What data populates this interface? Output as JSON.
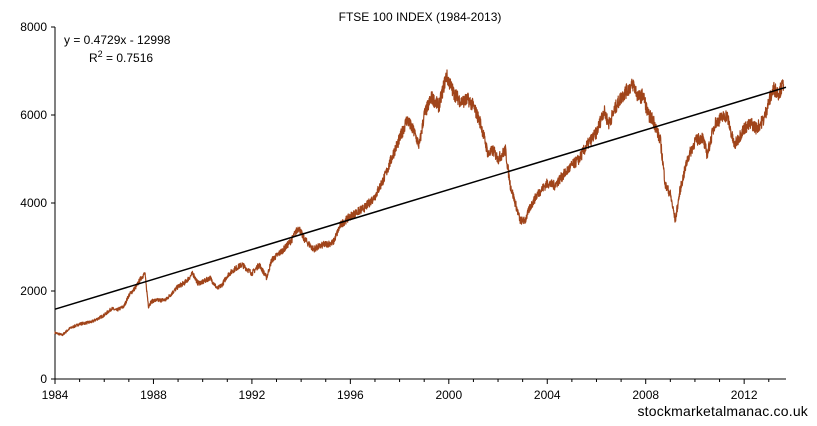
{
  "chart_data": {
    "type": "line",
    "title": "FTSE 100 INDEX (1984-2013)",
    "xlabel": "",
    "ylabel": "",
    "xlim": [
      1984,
      2013.7
    ],
    "ylim": [
      0,
      8000
    ],
    "x_ticks": [
      1984,
      1988,
      1992,
      1996,
      2000,
      2004,
      2008,
      2012
    ],
    "y_ticks": [
      0,
      2000,
      4000,
      6000,
      8000
    ],
    "grid": false,
    "legend": "none",
    "series": [
      {
        "color": "#a0441a",
        "x": [
          1984.0,
          1984.3,
          1984.6,
          1985.0,
          1985.5,
          1986.0,
          1986.3,
          1986.5,
          1986.8,
          1987.0,
          1987.3,
          1987.5,
          1987.65,
          1987.8,
          1987.9,
          1988.0,
          1988.5,
          1989.0,
          1989.3,
          1989.6,
          1989.8,
          1990.0,
          1990.3,
          1990.6,
          1990.8,
          1991.0,
          1991.3,
          1991.6,
          1992.0,
          1992.3,
          1992.6,
          1992.8,
          1993.0,
          1993.3,
          1993.6,
          1993.9,
          1994.1,
          1994.5,
          1994.9,
          1995.3,
          1995.6,
          1996.0,
          1996.3,
          1996.6,
          1997.0,
          1997.4,
          1997.8,
          1998.0,
          1998.3,
          1998.6,
          1998.8,
          1999.0,
          1999.3,
          1999.6,
          1999.9,
          2000.2,
          2000.5,
          2000.8,
          2001.0,
          2001.3,
          2001.6,
          2001.8,
          2002.0,
          2002.3,
          2002.5,
          2002.7,
          2002.9,
          2003.1,
          2003.3,
          2003.6,
          2004.0,
          2004.3,
          2004.6,
          2005.0,
          2005.3,
          2005.6,
          2006.0,
          2006.3,
          2006.5,
          2006.8,
          2007.0,
          2007.3,
          2007.5,
          2007.7,
          2007.9,
          2008.1,
          2008.3,
          2008.6,
          2008.8,
          2009.0,
          2009.2,
          2009.4,
          2009.7,
          2010.0,
          2010.3,
          2010.5,
          2010.8,
          2011.0,
          2011.3,
          2011.6,
          2011.8,
          2012.0,
          2012.3,
          2012.5,
          2012.8,
          2013.0,
          2013.2,
          2013.4,
          2013.6
        ],
        "y": [
          1050,
          1000,
          1150,
          1250,
          1300,
          1450,
          1600,
          1560,
          1650,
          1900,
          2100,
          2300,
          2400,
          1650,
          1750,
          1780,
          1800,
          2100,
          2200,
          2400,
          2180,
          2200,
          2300,
          2050,
          2150,
          2350,
          2500,
          2600,
          2400,
          2600,
          2300,
          2700,
          2800,
          2950,
          3150,
          3450,
          3200,
          2950,
          3050,
          3100,
          3500,
          3700,
          3800,
          3900,
          4150,
          4600,
          5200,
          5450,
          5900,
          5600,
          5300,
          6000,
          6400,
          6200,
          6900,
          6500,
          6300,
          6350,
          6200,
          5800,
          5100,
          5200,
          5000,
          5200,
          4400,
          4000,
          3600,
          3600,
          3900,
          4200,
          4450,
          4400,
          4600,
          4850,
          5000,
          5300,
          5600,
          6100,
          5800,
          6200,
          6400,
          6600,
          6700,
          6400,
          6450,
          6000,
          5900,
          5400,
          4400,
          4200,
          3600,
          4300,
          5000,
          5400,
          5500,
          5100,
          5800,
          5900,
          6000,
          5300,
          5500,
          5700,
          5800,
          5700,
          5900,
          6300,
          6600,
          6500,
          6700
        ]
      },
      {
        "type": "trendline",
        "color": "#000000",
        "x": [
          1984.0,
          2013.7
        ],
        "y": [
          1586,
          6631
        ]
      }
    ],
    "annotations": {
      "equation": "y = 0.4729x - 12998",
      "r2_prefix": "R",
      "r2_sup": "2",
      "r2_value": " = 0.7516"
    },
    "watermark": "stockmarketalmanac.co.uk"
  }
}
